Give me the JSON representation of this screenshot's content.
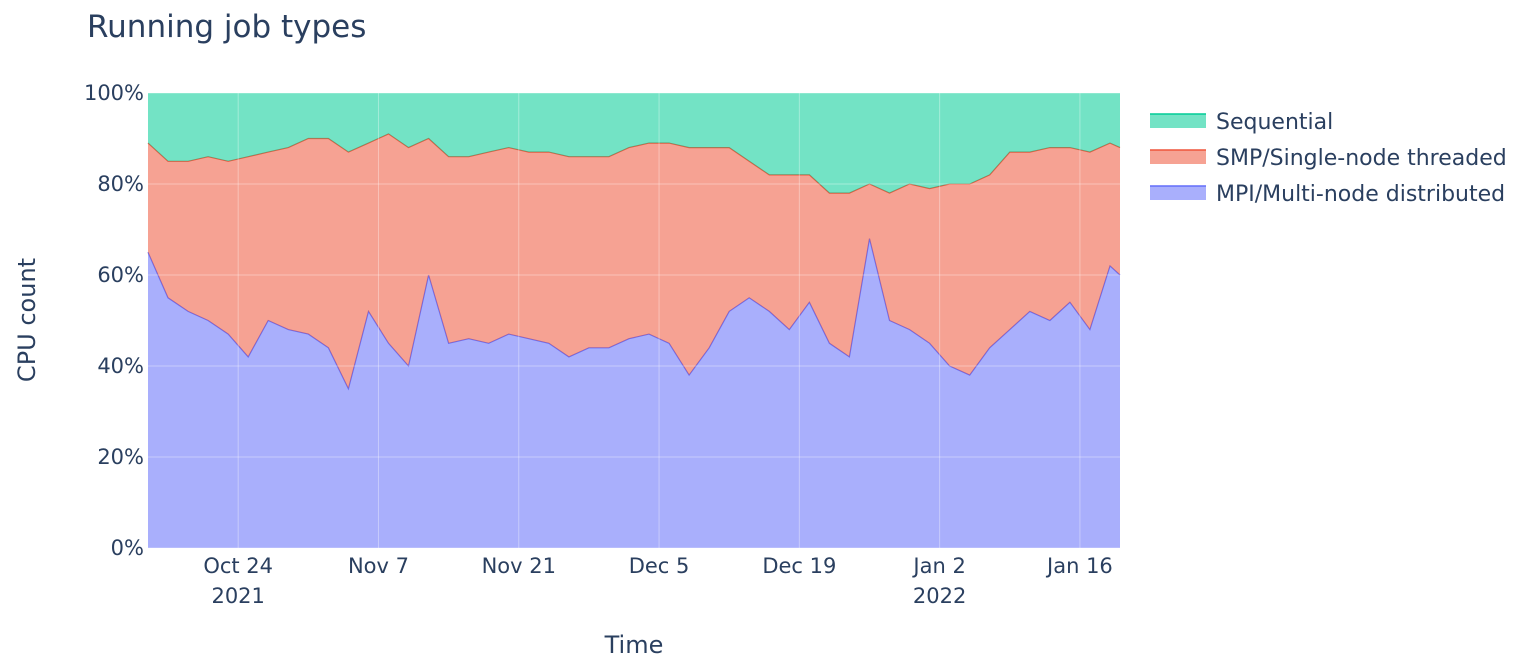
{
  "chart_data": {
    "type": "area",
    "title": "Running job types",
    "xlabel": "Time",
    "ylabel": "CPU count",
    "x_range": [
      "2021-10-15",
      "2022-01-20"
    ],
    "ylim": [
      0,
      100
    ],
    "y_ticks": [
      "0%",
      "20%",
      "40%",
      "60%",
      "80%",
      "100%"
    ],
    "x_ticks": [
      {
        "date": "2021-10-24",
        "label": "Oct 24",
        "year": "2021"
      },
      {
        "date": "2021-11-07",
        "label": "Nov 7",
        "year": ""
      },
      {
        "date": "2021-11-21",
        "label": "Nov 21",
        "year": ""
      },
      {
        "date": "2021-12-05",
        "label": "Dec 5",
        "year": ""
      },
      {
        "date": "2021-12-19",
        "label": "Dec 19",
        "year": ""
      },
      {
        "date": "2022-01-02",
        "label": "Jan 2",
        "year": "2022"
      },
      {
        "date": "2022-01-16",
        "label": "Jan 16",
        "year": ""
      }
    ],
    "grid": true,
    "stacked": true,
    "normalized_percent": true,
    "legend_position": "right",
    "x": [
      "2021-10-15",
      "2021-10-17",
      "2021-10-19",
      "2021-10-21",
      "2021-10-23",
      "2021-10-25",
      "2021-10-27",
      "2021-10-29",
      "2021-10-31",
      "2021-11-02",
      "2021-11-04",
      "2021-11-06",
      "2021-11-08",
      "2021-11-10",
      "2021-11-12",
      "2021-11-14",
      "2021-11-16",
      "2021-11-18",
      "2021-11-20",
      "2021-11-22",
      "2021-11-24",
      "2021-11-26",
      "2021-11-28",
      "2021-11-30",
      "2021-12-02",
      "2021-12-04",
      "2021-12-06",
      "2021-12-08",
      "2021-12-10",
      "2021-12-12",
      "2021-12-14",
      "2021-12-16",
      "2021-12-18",
      "2021-12-20",
      "2021-12-22",
      "2021-12-24",
      "2021-12-26",
      "2021-12-28",
      "2021-12-30",
      "2022-01-01",
      "2022-01-03",
      "2022-01-05",
      "2022-01-07",
      "2022-01-09",
      "2022-01-11",
      "2022-01-13",
      "2022-01-15",
      "2022-01-17",
      "2022-01-19",
      "2022-01-20"
    ],
    "series": [
      {
        "name": "MPI/Multi-node distributed",
        "color": "#636efa",
        "values": [
          65,
          55,
          52,
          50,
          47,
          42,
          50,
          48,
          47,
          44,
          35,
          52,
          45,
          40,
          60,
          45,
          46,
          45,
          47,
          46,
          45,
          42,
          44,
          44,
          46,
          47,
          45,
          38,
          44,
          52,
          55,
          52,
          48,
          54,
          45,
          42,
          68,
          50,
          48,
          45,
          40,
          38,
          44,
          48,
          52,
          50,
          54,
          48,
          62,
          60
        ]
      },
      {
        "name": "SMP/Single-node threaded",
        "color": "#ef553b",
        "values": [
          24,
          30,
          33,
          36,
          38,
          44,
          37,
          40,
          43,
          46,
          52,
          37,
          46,
          48,
          30,
          41,
          40,
          42,
          41,
          41,
          42,
          44,
          42,
          42,
          42,
          42,
          44,
          50,
          44,
          36,
          30,
          30,
          34,
          28,
          33,
          36,
          12,
          28,
          32,
          34,
          40,
          42,
          38,
          39,
          35,
          38,
          34,
          39,
          27,
          28
        ]
      },
      {
        "name": "Sequential",
        "color": "#00cc96",
        "values": [
          11,
          15,
          15,
          14,
          15,
          14,
          13,
          12,
          10,
          10,
          13,
          11,
          9,
          12,
          10,
          14,
          14,
          13,
          12,
          13,
          13,
          14,
          14,
          14,
          12,
          11,
          11,
          12,
          12,
          12,
          15,
          18,
          18,
          18,
          22,
          22,
          20,
          22,
          20,
          21,
          20,
          20,
          18,
          13,
          13,
          12,
          12,
          13,
          11,
          12
        ]
      }
    ]
  }
}
